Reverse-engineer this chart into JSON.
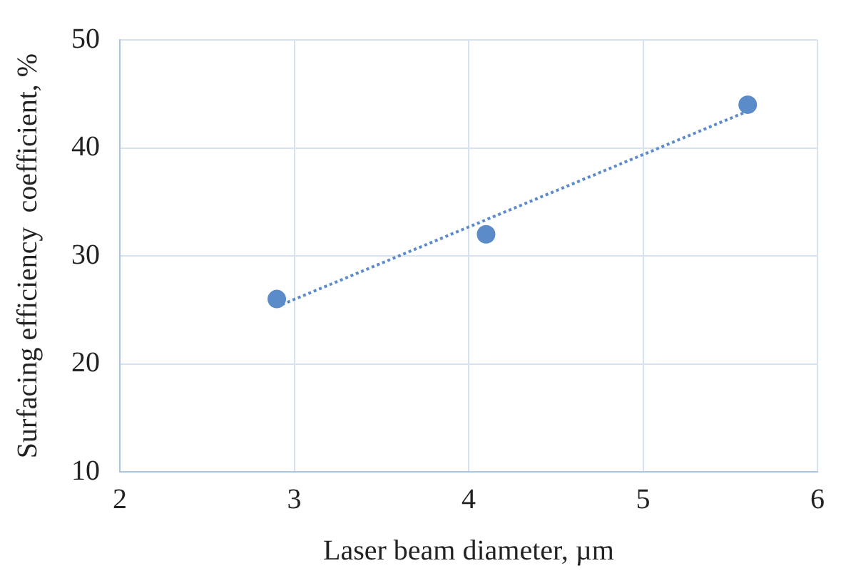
{
  "chart_data": {
    "type": "scatter",
    "xlabel": "Laser beam diameter, µm",
    "ylabel": "Surfacing efficiency  coefficient, %",
    "x": [
      2.9,
      4.1,
      5.6
    ],
    "series": [
      {
        "color": "#5b8bc9",
        "values": [
          26,
          32,
          44
        ]
      },
      {
        "type": "line",
        "color": "#5b8bc9",
        "x": [
          2.9,
          5.6
        ],
        "values": [
          25.3,
          43.4
        ],
        "line_style": "dotted",
        "marker": "none"
      }
    ],
    "marker": "circle",
    "xlim": [
      2,
      6
    ],
    "xticks": [
      2,
      3,
      4,
      5,
      6
    ],
    "ylim": [
      10,
      50
    ],
    "yticks": [
      10,
      20,
      30,
      40,
      50
    ],
    "grid": true,
    "legend": false
  }
}
